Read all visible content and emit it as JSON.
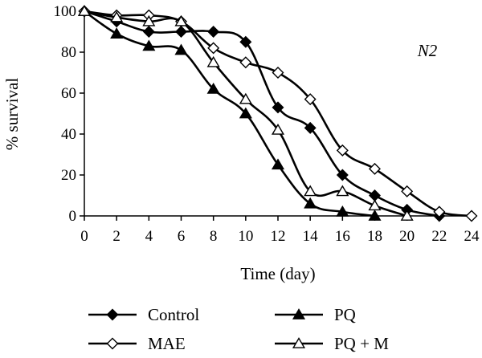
{
  "chart_data": {
    "type": "line",
    "title": "",
    "xlabel": "Time (day)",
    "ylabel": "% survival",
    "annotation": "N2",
    "xlim": [
      0,
      24
    ],
    "ylim": [
      0,
      100
    ],
    "xticks": [
      0,
      2,
      4,
      6,
      8,
      10,
      12,
      14,
      16,
      18,
      20,
      22,
      24
    ],
    "yticks": [
      0,
      20,
      40,
      60,
      80,
      100
    ],
    "grid": false,
    "legend_position": "bottom",
    "series": [
      {
        "name": "Control",
        "marker": "filled-diamond",
        "color": "#000000",
        "x": [
          0,
          2,
          4,
          6,
          8,
          10,
          12,
          14,
          16,
          18,
          20,
          22
        ],
        "y": [
          100,
          95,
          90,
          90,
          90,
          85,
          53,
          43,
          20,
          10,
          3,
          0
        ]
      },
      {
        "name": "MAE",
        "marker": "open-diamond",
        "color": "#000000",
        "x": [
          0,
          2,
          4,
          6,
          8,
          10,
          12,
          14,
          16,
          18,
          20,
          22,
          24
        ],
        "y": [
          100,
          98,
          98,
          95,
          82,
          75,
          70,
          57,
          32,
          23,
          12,
          2,
          0
        ]
      },
      {
        "name": "PQ",
        "marker": "filled-triangle",
        "color": "#000000",
        "x": [
          0,
          2,
          4,
          6,
          8,
          10,
          12,
          14,
          16,
          18
        ],
        "y": [
          100,
          89,
          83,
          81,
          62,
          50,
          25,
          6,
          2,
          0
        ]
      },
      {
        "name": "PQ + M",
        "marker": "open-triangle",
        "color": "#000000",
        "x": [
          0,
          2,
          4,
          6,
          8,
          10,
          12,
          14,
          16,
          18,
          20
        ],
        "y": [
          100,
          97,
          95,
          95,
          75,
          57,
          42,
          12,
          12,
          5,
          0
        ]
      }
    ]
  }
}
